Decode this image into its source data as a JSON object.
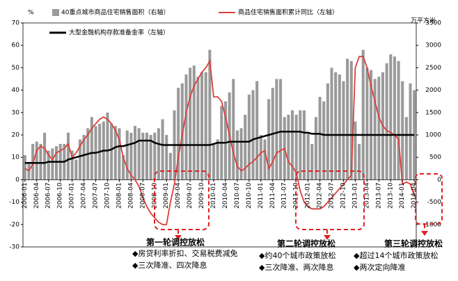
{
  "chart_data": {
    "type": "bar",
    "ylabel": "%",
    "y2label": "万平方米",
    "ylim": [
      -30,
      70
    ],
    "yticks": [
      -30,
      -20,
      -10,
      0,
      10,
      20,
      30,
      40,
      50,
      60,
      70
    ],
    "y2lim": [
      -1500,
      3500
    ],
    "y2ticks": [
      -1000,
      -500,
      0,
      500,
      1000,
      1500,
      2000,
      2500,
      3000,
      3500
    ],
    "categories": [
      "2006-01",
      null,
      null,
      "2006-04",
      null,
      null,
      "2006-07",
      null,
      null,
      "2006-10",
      null,
      null,
      "2007-01",
      null,
      null,
      "2007-04",
      null,
      null,
      "2007-07",
      null,
      null,
      "2007-10",
      null,
      null,
      "2008-01",
      null,
      null,
      "2008-04",
      null,
      null,
      "2008-07",
      null,
      null,
      "2008-10",
      null,
      null,
      "2009-01",
      null,
      null,
      "2009-04",
      null,
      null,
      "2009-07",
      null,
      null,
      "2009-10",
      null,
      null,
      "2010-01",
      null,
      null,
      "2010-04",
      null,
      null,
      "2010-07",
      null,
      null,
      "2010-10",
      null,
      null,
      "2011-01",
      null,
      null,
      "2011-04",
      null,
      null,
      "2011-07",
      null,
      null,
      "2011-10",
      null,
      null,
      "2012-01",
      null,
      null,
      "2012-04",
      null,
      null,
      "2012-07",
      null,
      null,
      "2012-10",
      null,
      null,
      "2013-01",
      null,
      null,
      "2013-04",
      null,
      null,
      "2013-07",
      null,
      null,
      "2013-10",
      null,
      null,
      "2014-01",
      null,
      null,
      "2014-04"
    ],
    "series": [
      {
        "name": "40重点城市商品住宅销售面积（右轴）",
        "type": "bar",
        "axis": "y2",
        "color": "#9a9a9a",
        "values": [
          550,
          400,
          800,
          850,
          800,
          1050,
          650,
          700,
          750,
          800,
          800,
          1050,
          650,
          450,
          900,
          1000,
          1150,
          1400,
          1200,
          1250,
          1300,
          1500,
          1250,
          1200,
          1150,
          550,
          1100,
          1050,
          1200,
          1150,
          1050,
          1050,
          1000,
          1050,
          1150,
          1350,
          1000,
          600,
          1550,
          2050,
          2150,
          2350,
          2500,
          2550,
          2300,
          2400,
          2400,
          2900,
          800,
          900,
          1650,
          1750,
          1950,
          2250,
          1100,
          1150,
          1450,
          1900,
          2000,
          2200,
          1000,
          900,
          1800,
          2050,
          2250,
          2250,
          1400,
          1450,
          1550,
          1450,
          1550,
          1550,
          1050,
          800,
          1400,
          1850,
          1750,
          2150,
          2500,
          2400,
          2350,
          2200,
          2700,
          2650,
          1300,
          800,
          2900,
          2500,
          2450,
          2250,
          2300,
          2400,
          2600,
          2800,
          2750,
          2650,
          2200,
          1400,
          2150,
          2000
        ]
      },
      {
        "name": "商品住宅销售面积累计同比（左轴）",
        "type": "line",
        "color": "#d9403a",
        "values": [
          5,
          4,
          7,
          13,
          15,
          14,
          11,
          9,
          12,
          13,
          14,
          16,
          10,
          12,
          15,
          18,
          20,
          23,
          25,
          27,
          28,
          27,
          25,
          22,
          18,
          10,
          5,
          2,
          0,
          -3,
          -8,
          -12,
          -15,
          -17,
          -19,
          -20,
          -20,
          -10,
          -2,
          10,
          20,
          30,
          37,
          42,
          45,
          48,
          50,
          53,
          37,
          37,
          35,
          28,
          20,
          12,
          6,
          4,
          5,
          7,
          8,
          10,
          12,
          13,
          5,
          8,
          12,
          13,
          14,
          8,
          6,
          3,
          -5,
          -10,
          -12,
          -13,
          -13,
          -13,
          -12,
          -10,
          -8,
          -6,
          -4,
          -2,
          0,
          2,
          50,
          55,
          55,
          50,
          42,
          35,
          28,
          24,
          22,
          21,
          20,
          18,
          -2,
          -1,
          -2,
          -7
        ]
      },
      {
        "name": "大型金融机构存款准备金率（左轴）",
        "type": "line",
        "color": "#000000",
        "values": [
          7.5,
          7.5,
          7.5,
          7.5,
          7.5,
          7.5,
          8,
          8,
          8,
          8,
          8,
          9,
          9.5,
          10,
          10.5,
          11,
          11.5,
          12,
          12,
          12.5,
          13,
          13,
          13.5,
          14.5,
          15,
          15,
          15.5,
          16,
          16.5,
          17.5,
          17.5,
          17.5,
          17.5,
          16.5,
          16,
          15.5,
          15.5,
          15.5,
          15.5,
          15.5,
          15.5,
          15.5,
          15.5,
          15.5,
          15.5,
          15.5,
          15.5,
          15.5,
          16,
          16.5,
          16.5,
          16.5,
          17,
          17,
          17,
          17,
          17,
          17,
          18,
          18.5,
          19,
          19.5,
          20,
          20.5,
          21,
          21.5,
          21.5,
          21.5,
          21.5,
          21.5,
          21.5,
          21,
          21,
          20.5,
          20.5,
          20.5,
          20,
          20,
          20,
          20,
          20,
          20,
          20,
          20,
          20,
          20,
          20,
          20,
          20,
          20,
          20,
          20,
          20,
          20,
          20,
          20,
          20,
          20,
          20,
          20
        ]
      }
    ],
    "annotations": [
      "第一轮调控放松",
      "◆房贷利率折扣、交易税费减免",
      "◆三次降准、四次降息",
      "第二轮调控放松",
      "◆约40个城市政策放松",
      "◆三次降准、两次降息",
      "第三轮调控放松",
      "◆超过14个城市政策放松",
      "◆两次定向降准"
    ]
  }
}
